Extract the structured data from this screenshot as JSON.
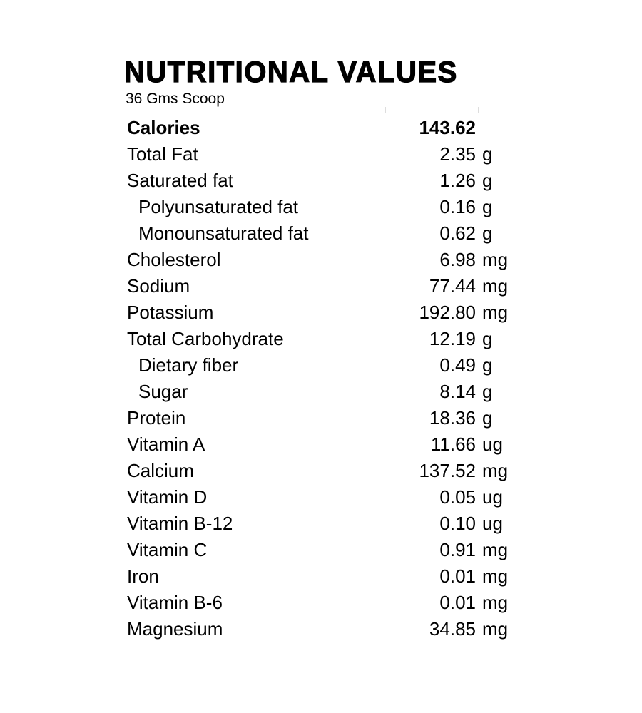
{
  "header": {
    "title": "NUTRITIONAL VALUES",
    "subtitle": "36 Gms Scoop"
  },
  "table": {
    "rows": [
      [
        "Calories",
        "143.62"
      ],
      [
        "Total Fat",
        "2.35",
        "g"
      ],
      [
        "Saturated fat",
        "1.26",
        "g"
      ],
      [
        "Polyunsaturated fat",
        "0.16",
        "g"
      ],
      [
        "Monounsaturated fat",
        "0.62",
        "g"
      ],
      [
        "Cholesterol",
        "6.98",
        "mg"
      ],
      [
        "Sodium",
        "77.44",
        "mg"
      ],
      [
        "Potassium",
        "192.80",
        "mg"
      ],
      [
        "Total Carbohydrate",
        "12.19",
        "g"
      ],
      [
        "Dietary fiber",
        "0.49",
        "g"
      ],
      [
        "Sugar",
        "8.14",
        "g"
      ],
      [
        "Protein",
        "18.36",
        "g"
      ],
      [
        "Vitamin A",
        "11.66",
        "ug"
      ],
      [
        "Calcium",
        "137.52",
        "mg"
      ],
      [
        "Vitamin D",
        "0.05",
        "ug"
      ],
      [
        "Vitamin B-12",
        "0.10",
        "ug"
      ],
      [
        "Vitamin C",
        "0.91",
        "mg"
      ],
      [
        "Iron",
        "0.01",
        "mg"
      ],
      [
        "Vitamin B-6",
        "0.01",
        "mg"
      ],
      [
        "Magnesium",
        "34.85",
        "mg"
      ]
    ]
  }
}
